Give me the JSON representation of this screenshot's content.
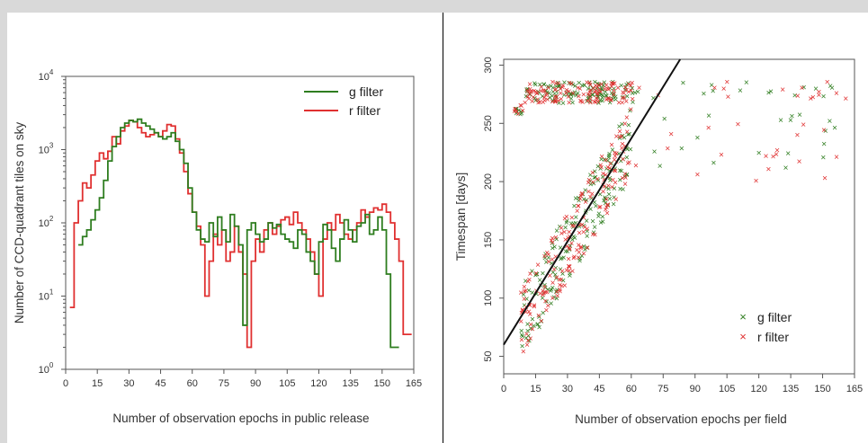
{
  "colors": {
    "g": "#2e7d1f",
    "r": "#e03030"
  },
  "chart_data": [
    {
      "type": "line",
      "style": "step-histogram",
      "xlabel": "Number of observation epochs in public release",
      "ylabel": "Number of CCD-quadrant tiles on sky",
      "xlim": [
        0,
        165
      ],
      "ylim": [
        1,
        10000
      ],
      "yscale": "log",
      "xticks": [
        0,
        15,
        30,
        45,
        60,
        75,
        90,
        105,
        120,
        135,
        150,
        165
      ],
      "yticks": [
        {
          "value": 1,
          "base": "10",
          "exp": "0"
        },
        {
          "value": 10,
          "base": "10",
          "exp": "1"
        },
        {
          "value": 100,
          "base": "10",
          "exp": "2"
        },
        {
          "value": 1000,
          "base": "10",
          "exp": "3"
        },
        {
          "value": 10000,
          "base": "10",
          "exp": "4"
        }
      ],
      "legend_position": "top-right",
      "series": [
        {
          "name": "g filter",
          "color_key": "g",
          "x": [
            6,
            8,
            10,
            12,
            14,
            16,
            18,
            20,
            22,
            24,
            26,
            28,
            30,
            32,
            34,
            36,
            38,
            40,
            42,
            44,
            46,
            48,
            50,
            52,
            54,
            56,
            58,
            60,
            62,
            64,
            66,
            68,
            70,
            72,
            74,
            76,
            78,
            80,
            82,
            84,
            86,
            88,
            90,
            92,
            94,
            96,
            98,
            100,
            102,
            104,
            106,
            108,
            110,
            112,
            114,
            116,
            118,
            120,
            122,
            124,
            126,
            128,
            130,
            132,
            134,
            136,
            138,
            140,
            142,
            144,
            146,
            148,
            150,
            152,
            154,
            156
          ],
          "y": [
            50,
            65,
            80,
            110,
            150,
            220,
            380,
            700,
            1100,
            1500,
            2000,
            2300,
            2500,
            2400,
            2600,
            2300,
            2100,
            1900,
            1700,
            1500,
            1400,
            1500,
            1700,
            1300,
            1000,
            650,
            300,
            140,
            80,
            60,
            55,
            100,
            65,
            120,
            80,
            55,
            130,
            90,
            50,
            4,
            80,
            100,
            70,
            55,
            60,
            100,
            85,
            95,
            70,
            60,
            55,
            45,
            80,
            70,
            40,
            30,
            20,
            55,
            95,
            80,
            45,
            30,
            60,
            110,
            80,
            55,
            90,
            100,
            130,
            70,
            80,
            120,
            80,
            20,
            2,
            2
          ]
        },
        {
          "name": "r filter",
          "color_key": "r",
          "x": [
            2,
            4,
            6,
            8,
            10,
            12,
            14,
            16,
            18,
            20,
            22,
            24,
            26,
            28,
            30,
            32,
            34,
            36,
            38,
            40,
            42,
            44,
            46,
            48,
            50,
            52,
            54,
            56,
            58,
            60,
            62,
            64,
            66,
            68,
            70,
            72,
            74,
            76,
            78,
            80,
            82,
            84,
            86,
            88,
            90,
            92,
            94,
            96,
            98,
            100,
            102,
            104,
            106,
            108,
            110,
            112,
            114,
            116,
            118,
            120,
            122,
            124,
            126,
            128,
            130,
            132,
            134,
            136,
            138,
            140,
            142,
            144,
            146,
            148,
            150,
            152,
            154,
            156,
            158,
            160,
            162
          ],
          "y": [
            7,
            100,
            200,
            350,
            300,
            450,
            700,
            900,
            750,
            950,
            1500,
            1200,
            1800,
            2100,
            2500,
            2400,
            2000,
            1700,
            1500,
            1600,
            1700,
            1500,
            1800,
            2200,
            2100,
            1400,
            900,
            500,
            250,
            140,
            90,
            50,
            10,
            30,
            70,
            50,
            80,
            30,
            40,
            90,
            40,
            20,
            2,
            30,
            60,
            40,
            80,
            100,
            70,
            90,
            110,
            120,
            95,
            140,
            100,
            80,
            60,
            40,
            20,
            10,
            60,
            100,
            80,
            130,
            100,
            70,
            60,
            80,
            100,
            150,
            120,
            140,
            160,
            150,
            180,
            140,
            100,
            60,
            30,
            3,
            3
          ]
        }
      ]
    },
    {
      "type": "scatter",
      "xlabel": "Number of observation epochs per field",
      "ylabel": "Timespan  [days]",
      "xlim": [
        0,
        165
      ],
      "ylim": [
        35,
        305
      ],
      "xticks": [
        0,
        15,
        30,
        45,
        60,
        75,
        90,
        105,
        120,
        135,
        150,
        165
      ],
      "yticks": [
        50,
        100,
        150,
        200,
        250,
        300
      ],
      "legend_position": "bottom-right",
      "fit_line": {
        "x": [
          0,
          83
        ],
        "y": [
          60,
          310
        ]
      },
      "series": [
        {
          "name": "g filter",
          "color_key": "g",
          "marker": "x"
        },
        {
          "name": "r filter",
          "color_key": "r",
          "marker": "x"
        }
      ]
    }
  ]
}
